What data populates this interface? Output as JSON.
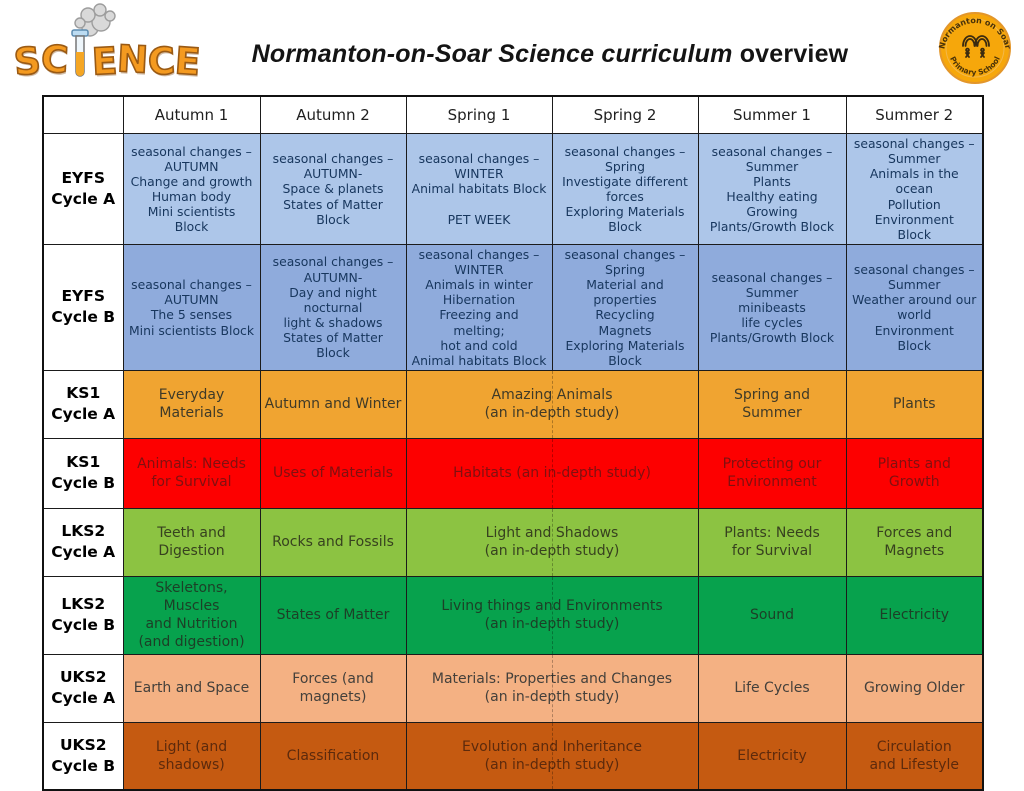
{
  "header": {
    "science_logo_text": "SCIENCE",
    "title_italic": "Normanton-on-Soar Science curriculum",
    "title_regular": " overview",
    "badge_top": "Normanton on Soar",
    "badge_bottom": "Primary School",
    "logo_color": "#f49a20",
    "badge_color": "#f6a70b"
  },
  "table": {
    "columns": [
      "Autumn 1",
      "Autumn 2",
      "Spring 1",
      "Spring 2",
      "Summer 1",
      "Summer 2"
    ],
    "rows": [
      {
        "label": "EYFS\nCycle A",
        "bg": "#adc6e9",
        "text_color": "#17365d",
        "group": "eyfs",
        "cells": [
          {
            "text": "seasonal changes –\nAUTUMN\nChange and growth\nHuman body\nMini scientists\nBlock",
            "span": 1
          },
          {
            "text": "seasonal changes –\nAUTUMN-\nSpace & planets\nStates of Matter Block",
            "span": 1
          },
          {
            "text": "seasonal changes –\nWINTER\nAnimal habitats Block\n\nPET WEEK",
            "span": 1
          },
          {
            "text": "seasonal changes –\nSpring\nInvestigate different\nforces\nExploring Materials\nBlock",
            "span": 1
          },
          {
            "text": "seasonal changes –\nSummer\nPlants\nHealthy eating\nGrowing\nPlants/Growth Block",
            "span": 1
          },
          {
            "text": "seasonal changes –\nSummer\nAnimals in the ocean\nPollution\nEnvironment\nBlock",
            "span": 1
          }
        ]
      },
      {
        "label": "EYFS\nCycle B",
        "bg": "#8fabdc",
        "text_color": "#17365d",
        "group": "eyfs",
        "cells": [
          {
            "text": "seasonal changes –\nAUTUMN\nThe 5 senses\nMini scientists Block",
            "span": 1
          },
          {
            "text": "seasonal changes –\nAUTUMN-\nDay and night\nnocturnal\nlight & shadows\nStates of Matter Block",
            "span": 1
          },
          {
            "text": "seasonal changes –\nWINTER\nAnimals in winter\nHibernation\nFreezing and\nmelting;\nhot and cold\nAnimal habitats Block",
            "span": 1
          },
          {
            "text": "seasonal changes –\nSpring\nMaterial and\nproperties\nRecycling\nMagnets\nExploring Materials\nBlock",
            "span": 1
          },
          {
            "text": "seasonal changes –\nSummer\nminibeasts\nlife cycles\nPlants/Growth Block",
            "span": 1
          },
          {
            "text": "seasonal changes –\nSummer\nWeather around our\nworld\nEnvironment\nBlock",
            "span": 1
          }
        ]
      },
      {
        "label": "KS1\nCycle A",
        "bg": "#f0a431",
        "text_color": "#3f3a28",
        "group": "key",
        "cells": [
          {
            "text": "Everyday Materials",
            "span": 1
          },
          {
            "text": "Autumn and Winter",
            "span": 1
          },
          {
            "text": "Amazing Animals\n(an in-depth study)",
            "span": 2
          },
          {
            "text": "Spring and Summer",
            "span": 1
          },
          {
            "text": "Plants",
            "span": 1
          }
        ]
      },
      {
        "label": "KS1\nCycle B",
        "bg": "#fd0000",
        "text_color": "#801010",
        "group": "key",
        "cells": [
          {
            "text": "Animals: Needs\nfor Survival",
            "span": 1
          },
          {
            "text": "Uses of Materials",
            "span": 1
          },
          {
            "text": "Habitats (an in-depth study)",
            "span": 2
          },
          {
            "text": "Protecting our\nEnvironment",
            "span": 1
          },
          {
            "text": "Plants and\nGrowth",
            "span": 1
          }
        ]
      },
      {
        "label": "LKS2\nCycle A",
        "bg": "#8cc342",
        "text_color": "#37411f",
        "group": "key",
        "cells": [
          {
            "text": "Teeth and\nDigestion",
            "span": 1
          },
          {
            "text": "Rocks and Fossils",
            "span": 1
          },
          {
            "text": "Light and Shadows\n(an in-depth study)",
            "span": 2
          },
          {
            "text": "Plants: Needs\nfor Survival",
            "span": 1
          },
          {
            "text": "Forces and Magnets",
            "span": 1
          }
        ]
      },
      {
        "label": "LKS2\nCycle B",
        "bg": "#07a24d",
        "text_color": "#1c4027",
        "group": "key",
        "cells": [
          {
            "text": "Skeletons, Muscles\nand Nutrition\n(and digestion)",
            "span": 1
          },
          {
            "text": "States of Matter",
            "span": 1
          },
          {
            "text": "Living things and Environments\n(an in-depth study)",
            "span": 2
          },
          {
            "text": "Sound",
            "span": 1
          },
          {
            "text": "Electricity",
            "span": 1
          }
        ]
      },
      {
        "label": "UKS2\nCycle A",
        "bg": "#f4b183",
        "text_color": "#44403b",
        "group": "key",
        "cells": [
          {
            "text": "Earth and Space",
            "span": 1
          },
          {
            "text": "Forces (and\nmagnets)",
            "span": 1
          },
          {
            "text": "Materials: Properties and Changes\n(an in-depth study)",
            "span": 2
          },
          {
            "text": "Life Cycles",
            "span": 1
          },
          {
            "text": "Growing Older",
            "span": 1
          }
        ]
      },
      {
        "label": "UKS2\nCycle B",
        "bg": "#c55a11",
        "text_color": "#5d2a0c",
        "group": "key",
        "cells": [
          {
            "text": "Light (and\nshadows)",
            "span": 1
          },
          {
            "text": "Classification",
            "span": 1
          },
          {
            "text": "Evolution and Inheritance\n(an in-depth study)",
            "span": 2
          },
          {
            "text": "Electricity",
            "span": 1
          },
          {
            "text": "Circulation\nand Lifestyle",
            "span": 1
          }
        ]
      }
    ]
  }
}
